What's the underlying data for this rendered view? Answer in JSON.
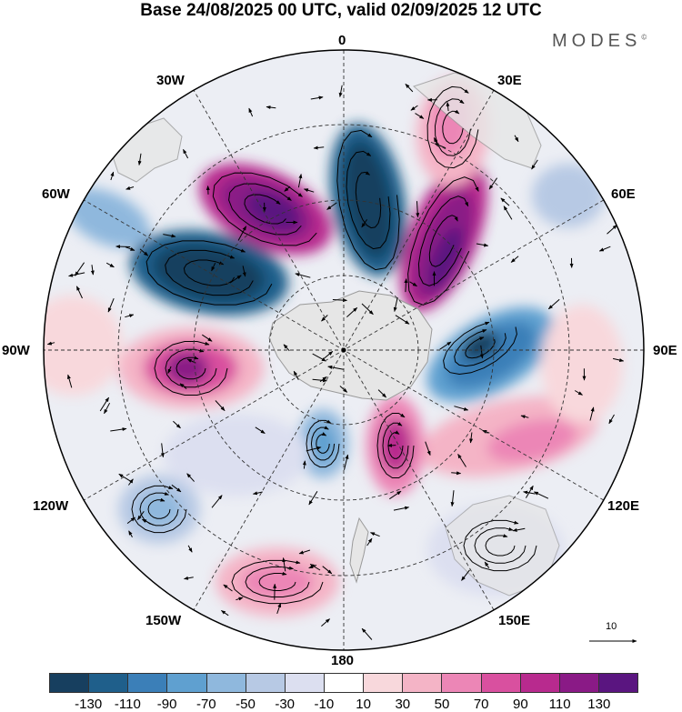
{
  "title": "Base 24/08/2025 00 UTC, valid 02/09/2025 12 UTC",
  "brand": "MODES",
  "brand_mark": "©",
  "longitude_labels": [
    "0",
    "30E",
    "60E",
    "90E",
    "120E",
    "150E",
    "180",
    "150W",
    "120W",
    "90W",
    "60W",
    "30W"
  ],
  "reference_vector": "10",
  "colorbar": {
    "ticks": [
      "-130",
      "-110",
      "-90",
      "-70",
      "-50",
      "-30",
      "-10",
      "10",
      "30",
      "50",
      "70",
      "90",
      "110",
      "130"
    ],
    "colors": [
      "#173f5f",
      "#1f5f8b",
      "#3b7fb8",
      "#5fa0d0",
      "#8fb8dd",
      "#b7c9e4",
      "#dcdff0",
      "#ffffff",
      "#f8d8dc",
      "#f4b4c6",
      "#ec86b6",
      "#d9509f",
      "#b82a8e",
      "#8a1a86",
      "#5a1580"
    ]
  },
  "colors": {
    "land": "#e6e6e6",
    "coast": "#9a9a9a",
    "grid": "#333333"
  }
}
